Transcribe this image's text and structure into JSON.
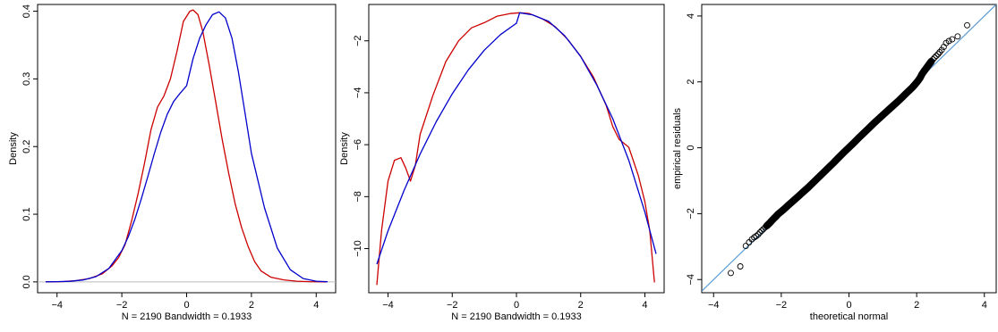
{
  "chart_data": [
    {
      "type": "line",
      "ylabel": "Density",
      "xlabel": "N = 2190   Bandwidth = 0.1933",
      "xlim": [
        -4.6,
        4.6
      ],
      "ylim": [
        -0.016,
        0.41
      ],
      "x_ticks": [
        -4,
        -2,
        0,
        2,
        4
      ],
      "y_ticks": [
        0.0,
        0.1,
        0.2,
        0.3,
        0.4
      ],
      "x_tick_labels": [
        "−4",
        "−2",
        "0",
        "2",
        "4"
      ],
      "y_tick_labels": [
        "0.0",
        "0.1",
        "0.2",
        "0.3",
        "0.4"
      ],
      "hline": 0,
      "hline_color": "#bbbbbb",
      "series": [
        {
          "color": "#cc0000",
          "x": [
            -4.35,
            -3.8,
            -3.4,
            -3.0,
            -2.6,
            -2.3,
            -2.1,
            -1.9,
            -1.7,
            -1.5,
            -1.3,
            -1.1,
            -0.9,
            -0.7,
            -0.5,
            -0.3,
            -0.1,
            0.1,
            0.2,
            0.35,
            0.5,
            0.7,
            0.9,
            1.1,
            1.3,
            1.5,
            1.7,
            1.9,
            2.1,
            2.3,
            2.6,
            3.0,
            3.4,
            3.8,
            4.3
          ],
          "values": [
            0.0002,
            0.0005,
            0.002,
            0.005,
            0.012,
            0.024,
            0.036,
            0.055,
            0.09,
            0.13,
            0.175,
            0.225,
            0.258,
            0.275,
            0.3,
            0.34,
            0.385,
            0.4,
            0.402,
            0.395,
            0.37,
            0.32,
            0.265,
            0.21,
            0.16,
            0.115,
            0.08,
            0.052,
            0.03,
            0.016,
            0.007,
            0.003,
            0.001,
            0.0003,
            0.0001
          ]
        },
        {
          "color": "#0000cc",
          "x": [
            -4.35,
            -4.0,
            -3.6,
            -3.2,
            -2.8,
            -2.4,
            -2.0,
            -1.8,
            -1.6,
            -1.4,
            -1.2,
            -1.0,
            -0.8,
            -0.6,
            -0.4,
            -0.2,
            0.0,
            0.1,
            0.2,
            0.4,
            0.6,
            0.8,
            1.0,
            1.2,
            1.4,
            1.6,
            1.8,
            2.0,
            2.4,
            2.8,
            3.2,
            3.6,
            4.0,
            4.35
          ],
          "values": [
            0.0001,
            0.0003,
            0.0009,
            0.0028,
            0.0078,
            0.0199,
            0.0462,
            0.0666,
            0.0923,
            0.1224,
            0.1554,
            0.1891,
            0.2207,
            0.2475,
            0.2667,
            0.2789,
            0.29,
            0.31,
            0.33,
            0.36,
            0.38,
            0.395,
            0.399,
            0.39,
            0.36,
            0.31,
            0.25,
            0.19,
            0.11,
            0.05,
            0.018,
            0.005,
            0.001,
            0.0002
          ]
        }
      ]
    },
    {
      "type": "line",
      "ylabel": "Density",
      "xlabel": "N = 2190   Bandwidth = 0.1933",
      "xlim": [
        -4.6,
        4.6
      ],
      "ylim": [
        -11.7,
        -0.6
      ],
      "x_ticks": [
        -4,
        -2,
        0,
        2,
        4
      ],
      "y_ticks": [
        -10,
        -8,
        -6,
        -4,
        -2
      ],
      "x_tick_labels": [
        "−4",
        "−2",
        "0",
        "2",
        "4"
      ],
      "y_tick_labels": [
        "−10",
        "−8",
        "−6",
        "−4",
        "−2"
      ],
      "series": [
        {
          "color": "#cc0000",
          "x": [
            -4.35,
            -4.2,
            -4.0,
            -3.8,
            -3.6,
            -3.45,
            -3.3,
            -3.15,
            -3.0,
            -2.6,
            -2.2,
            -1.8,
            -1.4,
            -1.0,
            -0.6,
            -0.2,
            0.1,
            0.4,
            0.8,
            1.2,
            1.6,
            2.0,
            2.4,
            2.8,
            3.0,
            3.2,
            3.5,
            3.8,
            4.0,
            4.15,
            4.3
          ],
          "values": [
            -11.4,
            -9.3,
            -7.4,
            -6.6,
            -6.5,
            -6.9,
            -7.4,
            -6.8,
            -5.6,
            -4.1,
            -2.8,
            -2.0,
            -1.5,
            -1.3,
            -1.05,
            -0.95,
            -0.92,
            -0.95,
            -1.15,
            -1.45,
            -1.95,
            -2.6,
            -3.4,
            -4.5,
            -5.3,
            -5.8,
            -6.1,
            -7.2,
            -8.2,
            -9.3,
            -11.3
          ]
        },
        {
          "color": "#0000cc",
          "x": [
            -4.35,
            -4.0,
            -3.5,
            -3.0,
            -2.5,
            -2.0,
            -1.5,
            -1.0,
            -0.5,
            0.0,
            0.1,
            0.5,
            1.0,
            1.5,
            2.0,
            2.5,
            3.0,
            3.5,
            4.0,
            4.35
          ],
          "values": [
            -10.6,
            -9.32,
            -7.76,
            -6.36,
            -5.12,
            -4.04,
            -3.12,
            -2.36,
            -1.76,
            -1.32,
            -0.92,
            -1.0,
            -1.25,
            -1.8,
            -2.6,
            -3.7,
            -5.0,
            -6.6,
            -8.6,
            -10.2
          ]
        }
      ]
    },
    {
      "type": "scatter",
      "xlabel": "theoretical normal",
      "ylabel": "empirical residuals",
      "xlim": [
        -4.35,
        4.35
      ],
      "ylim": [
        -4.4,
        4.35
      ],
      "x_ticks": [
        -4,
        -2,
        0,
        2,
        4
      ],
      "y_ticks": [
        -4,
        -2,
        0,
        2,
        4
      ],
      "x_tick_labels": [
        "−4",
        "−2",
        "0",
        "2",
        "4"
      ],
      "y_tick_labels": [
        "−4",
        "−2",
        "0",
        "2",
        "4"
      ],
      "reference_line": {
        "slope": 1,
        "intercept": 0,
        "color": "#5b9bd5"
      },
      "points": {
        "x": [
          -3.49,
          -3.21,
          -3.05,
          -2.95,
          -2.87,
          -2.8,
          -2.74,
          -2.68,
          -2.63,
          -2.58,
          -2.53,
          -2.48,
          -2.43,
          -2.38,
          -2.33,
          -2.28,
          -2.22,
          -2.16,
          -2.1,
          -2.03,
          -1.96,
          -1.88,
          -1.8,
          -1.7,
          -1.6,
          -1.48,
          -1.35,
          -1.2,
          -1.05,
          -0.9,
          -0.75,
          -0.6,
          -0.45,
          -0.3,
          -0.15,
          0.0,
          0.15,
          0.3,
          0.45,
          0.6,
          0.75,
          0.9,
          1.05,
          1.2,
          1.35,
          1.48,
          1.6,
          1.7,
          1.8,
          1.88,
          1.96,
          2.03,
          2.1,
          2.16,
          2.22,
          2.28,
          2.33,
          2.38,
          2.43,
          2.48,
          2.53,
          2.58,
          2.63,
          2.68,
          2.74,
          2.8,
          2.87,
          2.95,
          3.05,
          3.21,
          3.49
        ],
        "y": [
          -3.8,
          -3.6,
          -2.98,
          -2.87,
          -2.78,
          -2.72,
          -2.68,
          -2.63,
          -2.57,
          -2.52,
          -2.47,
          -2.42,
          -2.37,
          -2.32,
          -2.27,
          -2.21,
          -2.15,
          -2.09,
          -2.02,
          -1.96,
          -1.9,
          -1.83,
          -1.75,
          -1.66,
          -1.57,
          -1.46,
          -1.34,
          -1.2,
          -1.05,
          -0.9,
          -0.75,
          -0.6,
          -0.45,
          -0.29,
          -0.14,
          0.01,
          0.16,
          0.31,
          0.46,
          0.61,
          0.76,
          0.9,
          1.04,
          1.18,
          1.32,
          1.44,
          1.56,
          1.66,
          1.76,
          1.84,
          1.93,
          2.02,
          2.12,
          2.24,
          2.33,
          2.41,
          2.48,
          2.55,
          2.62,
          2.68,
          2.74,
          2.79,
          2.84,
          2.9,
          2.97,
          3.06,
          3.18,
          3.24,
          3.29,
          3.38,
          3.72
        ]
      }
    }
  ]
}
